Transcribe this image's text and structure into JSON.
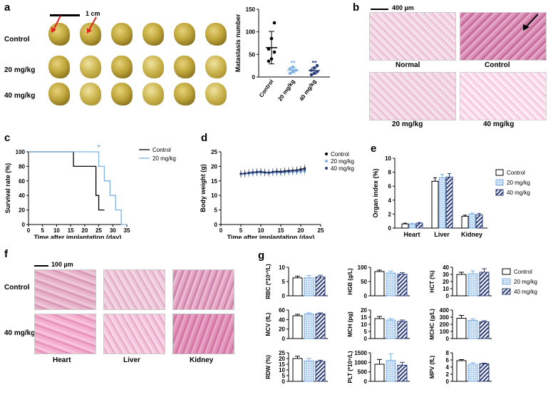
{
  "panels": {
    "a": {
      "letter": "a",
      "scale": "1 cm",
      "rows": [
        "Control",
        "20 mg/kg",
        "40 mg/kg"
      ]
    },
    "b": {
      "letter": "b",
      "scale": "400 µm",
      "labels": [
        "Normal",
        "Control",
        "20 mg/kg",
        "40 mg/kg"
      ]
    },
    "c": {
      "letter": "c"
    },
    "d": {
      "letter": "d"
    },
    "e": {
      "letter": "e"
    },
    "f": {
      "letter": "f",
      "scale": "100 µm",
      "rows": [
        "Control",
        "40 mg/kg"
      ],
      "cols": [
        "Heart",
        "Liver",
        "Kidney"
      ]
    },
    "g": {
      "letter": "g"
    }
  },
  "legend": {
    "control": "Control",
    "low": "20 mg/kg",
    "high": "40 mg/kg"
  },
  "chart_data": [
    {
      "id": "a-metastasis",
      "type": "scatter",
      "ylabel": "Matastasis number",
      "ylim": [
        0,
        150
      ],
      "yticks": [
        0,
        50,
        100,
        150
      ],
      "categories": [
        "Control",
        "20 mg/kg",
        "40 mg/kg"
      ],
      "means": [
        65,
        15,
        14
      ],
      "sd": [
        36,
        6,
        7
      ],
      "points": [
        [
          35,
          40,
          55,
          62,
          85,
          120
        ],
        [
          8,
          12,
          15,
          18,
          22
        ],
        [
          5,
          8,
          12,
          15,
          20,
          25
        ]
      ],
      "annotations": [
        "",
        "**",
        "**"
      ]
    },
    {
      "id": "c-survival",
      "type": "line",
      "ylabel": "Survival rate (%)",
      "xlabel": "Time after implantation (day)",
      "xlim": [
        0,
        35
      ],
      "ylim": [
        0,
        100
      ],
      "xticks": [
        0,
        5,
        10,
        15,
        20,
        25,
        30,
        35
      ],
      "yticks": [
        0,
        20,
        40,
        60,
        80,
        100
      ],
      "series": [
        {
          "name": "Control",
          "x": [
            0,
            16,
            16,
            24,
            24,
            25,
            25,
            27
          ],
          "y": [
            100,
            100,
            80,
            80,
            40,
            40,
            20,
            20
          ]
        },
        {
          "name": "20 mg/kg",
          "x": [
            0,
            25,
            25,
            27,
            27,
            29,
            29,
            31,
            31,
            33,
            33,
            35
          ],
          "y": [
            100,
            100,
            80,
            80,
            60,
            60,
            40,
            40,
            20,
            20,
            0,
            0
          ]
        }
      ],
      "annotation": "*"
    },
    {
      "id": "d-bodyweight",
      "type": "line",
      "ylabel": "Body weight (g)",
      "xlabel": "Time after implantation (day)",
      "xlim": [
        0,
        25
      ],
      "ylim": [
        0,
        25
      ],
      "xticks": [
        0,
        5,
        10,
        15,
        20,
        25
      ],
      "yticks": [
        0,
        5,
        10,
        15,
        20,
        25
      ],
      "x": [
        5,
        6,
        7,
        8,
        9,
        10,
        11,
        12,
        13,
        14,
        15,
        16,
        17,
        18,
        19,
        20,
        21
      ],
      "series": [
        {
          "name": "Control",
          "values": [
            17.5,
            17.6,
            17.8,
            18.0,
            18.1,
            18.2,
            18.0,
            17.9,
            18.1,
            18.3,
            18.2,
            18.4,
            18.5,
            18.6,
            18.7,
            19.0,
            19.3
          ]
        },
        {
          "name": "20 mg/kg",
          "values": [
            17.3,
            17.4,
            17.5,
            17.6,
            17.8,
            17.9,
            17.7,
            17.6,
            17.8,
            17.9,
            17.8,
            17.9,
            18.0,
            18.1,
            18.1,
            18.2,
            18.3
          ]
        },
        {
          "name": "40 mg/kg",
          "values": [
            17.4,
            17.5,
            17.7,
            17.9,
            18.0,
            18.0,
            17.9,
            17.8,
            18.0,
            18.1,
            18.0,
            18.2,
            18.3,
            18.4,
            18.5,
            18.7,
            18.9
          ]
        }
      ]
    },
    {
      "id": "e-organ",
      "type": "bar",
      "ylabel": "Organ index (%)",
      "ylim": [
        0,
        10
      ],
      "yticks": [
        0,
        2,
        4,
        6,
        8,
        10
      ],
      "categories": [
        "Heart",
        "Liver",
        "Kidney"
      ],
      "series": [
        {
          "name": "Control",
          "values": [
            0.6,
            6.7,
            1.7
          ],
          "err": [
            0.1,
            0.5,
            0.15
          ]
        },
        {
          "name": "20 mg/kg",
          "values": [
            0.6,
            7.2,
            2.0
          ],
          "err": [
            0.1,
            0.5,
            0.15
          ]
        },
        {
          "name": "40 mg/kg",
          "values": [
            0.7,
            7.3,
            1.9
          ],
          "err": [
            0.1,
            0.5,
            0.2
          ]
        }
      ]
    },
    {
      "id": "g-blood",
      "type": "bar",
      "subplots": [
        {
          "ylabel": "RBC (*10¹²/L)",
          "ylim": [
            0,
            10
          ],
          "yticks": [
            0,
            5,
            10
          ],
          "values": [
            6.3,
            6.3,
            6.6
          ],
          "err": [
            0.6,
            0.8,
            0.6
          ]
        },
        {
          "ylabel": "HGB (g/L)",
          "ylim": [
            0,
            100
          ],
          "yticks": [
            0,
            50,
            100
          ],
          "values": [
            85,
            80,
            76
          ],
          "err": [
            5,
            7,
            5
          ]
        },
        {
          "ylabel": "HCT (%)",
          "ylim": [
            0,
            40
          ],
          "yticks": [
            0,
            10,
            20,
            30,
            40
          ],
          "values": [
            30,
            31,
            33
          ],
          "err": [
            3,
            4,
            5
          ]
        },
        {
          "ylabel": "MCV (fL)",
          "ylim": [
            0,
            60
          ],
          "yticks": [
            0,
            20,
            40,
            60
          ],
          "values": [
            48,
            52,
            52
          ],
          "err": [
            3,
            2,
            2
          ]
        },
        {
          "ylabel": "MCH (pg)",
          "ylim": [
            0,
            20
          ],
          "yticks": [
            0,
            5,
            10,
            15,
            20
          ],
          "values": [
            14,
            13,
            12
          ],
          "err": [
            1.5,
            1,
            1
          ]
        },
        {
          "ylabel": "MCHC (g/L)",
          "ylim": [
            0,
            400
          ],
          "yticks": [
            0,
            100,
            200,
            300,
            400
          ],
          "values": [
            285,
            255,
            235
          ],
          "err": [
            40,
            20,
            15
          ]
        },
        {
          "ylabel": "RDW (%)",
          "ylim": [
            0,
            25
          ],
          "yticks": [
            0,
            5,
            10,
            15,
            20,
            25
          ],
          "values": [
            20,
            18,
            17.5
          ],
          "err": [
            2,
            2,
            1
          ]
        },
        {
          "ylabel": "PLT (*10⁹/L)",
          "ylim": [
            0,
            1500
          ],
          "yticks": [
            0,
            500,
            1000,
            1500
          ],
          "values": [
            900,
            1100,
            850
          ],
          "err": [
            250,
            350,
            150
          ]
        },
        {
          "ylabel": "MPV (fL)",
          "ylim": [
            0,
            8
          ],
          "yticks": [
            0,
            2,
            4,
            6,
            8
          ],
          "values": [
            5.8,
            4.8,
            4.9
          ],
          "err": [
            0.3,
            0.4,
            0.2
          ]
        }
      ]
    }
  ]
}
